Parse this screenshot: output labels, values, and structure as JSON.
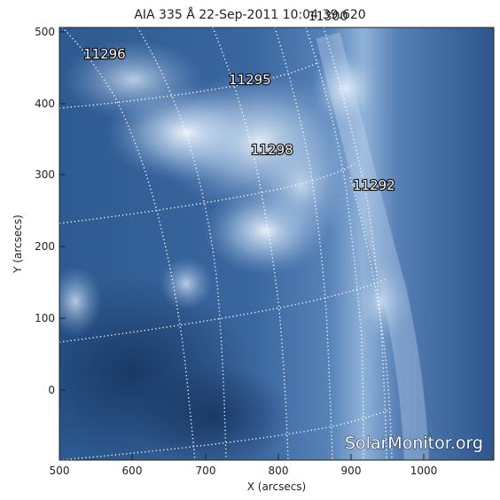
{
  "title": "AIA 335 Å 22-Sep-2011 10:04:39.620",
  "title_overlap": "11300",
  "watermark": "SolarMonitor.org",
  "axes": {
    "xlabel": "X (arcsecs)",
    "ylabel": "Y (arcsecs)",
    "x_ticks": [
      "500",
      "600",
      "700",
      "800",
      "900",
      "1000"
    ],
    "y_ticks": [
      "500",
      "400",
      "300",
      "200",
      "100",
      "0"
    ],
    "xlim": [
      500,
      1100
    ],
    "ylim": [
      -100,
      510
    ]
  },
  "active_regions": [
    {
      "number": "11296"
    },
    {
      "number": "11295"
    },
    {
      "number": "11298"
    },
    {
      "number": "11292"
    }
  ],
  "colors": {
    "image_dark": "#1b3c6c",
    "image_mid": "#3f69a0",
    "image_bright": "#e8f2fb",
    "grid": "#ffffff"
  }
}
